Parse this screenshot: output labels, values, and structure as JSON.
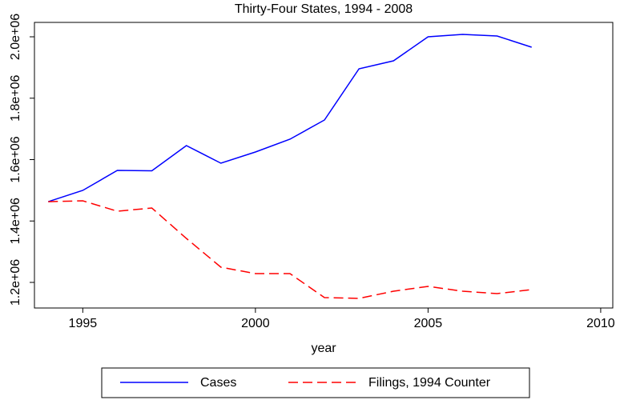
{
  "chart_data": {
    "type": "line",
    "title": "Thirty-Four States, 1994 - 2008",
    "x_label": "year",
    "x": [
      1994,
      1995,
      1996,
      1997,
      1998,
      1999,
      2000,
      2001,
      2002,
      2003,
      2004,
      2005,
      2006,
      2007,
      2008
    ],
    "series": [
      {
        "name": "Cases",
        "color": "#0000ff",
        "dash": "solid",
        "values": [
          1463000,
          1499700,
          1564800,
          1563500,
          1645600,
          1588300,
          1624800,
          1666500,
          1729000,
          1895800,
          1921800,
          2000000,
          2007800,
          2002600,
          1966100
        ]
      },
      {
        "name": "Filings, 1994 Counter",
        "color": "#ff0000",
        "dash": "dashed",
        "values": [
          1463000,
          1465800,
          1431900,
          1442300,
          1343300,
          1249500,
          1228700,
          1228700,
          1150500,
          1147900,
          1171300,
          1187000,
          1171300,
          1163500,
          1176500
        ]
      }
    ],
    "xlim": [
      1993.6,
      2010.35
    ],
    "xticks": [
      1995,
      2000,
      2005,
      2010
    ],
    "ylim": [
      1116600,
      2046900
    ],
    "yticks": [
      {
        "value": 1200000,
        "label": "1.2e+06"
      },
      {
        "value": 1400000,
        "label": "1.4e+06"
      },
      {
        "value": 1600000,
        "label": "1.6e+06"
      },
      {
        "value": 1800000,
        "label": "1.8e+06"
      },
      {
        "value": 2000000,
        "label": "2.0e+06"
      }
    ],
    "legend": "bottom",
    "grid": false
  }
}
